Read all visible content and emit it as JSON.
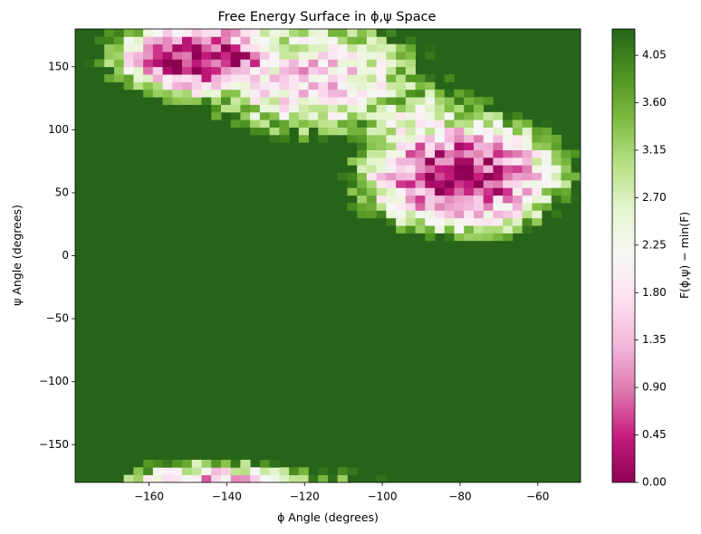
{
  "chart_data": {
    "type": "heatmap",
    "title": "Free Energy Surface in ϕ,ψ Space",
    "xlabel": "ϕ Angle (degrees)",
    "ylabel": "ψ Angle (degrees)",
    "colorbar_label": "F(ϕ,ψ) − min(F)",
    "xlim": [
      -179,
      -49
    ],
    "ylim": [
      -180,
      180
    ],
    "x_ticks": [
      -160,
      -140,
      -120,
      -100,
      -80,
      -60
    ],
    "x_tick_labels": [
      "−160",
      "−140",
      "−120",
      "−100",
      "−80",
      "−60"
    ],
    "y_ticks": [
      -150,
      -100,
      -50,
      0,
      50,
      100,
      150
    ],
    "y_tick_labels": [
      "−150",
      "−100",
      "−50",
      "0",
      "50",
      "100",
      "150"
    ],
    "colorbar_range": [
      0,
      4.3
    ],
    "colorbar_ticks": [
      0.0,
      0.45,
      0.9,
      1.35,
      1.8,
      2.25,
      2.7,
      3.15,
      3.6,
      4.05
    ],
    "colorbar_tick_labels": [
      "0.00",
      "0.45",
      "0.90",
      "1.35",
      "1.80",
      "2.25",
      "2.70",
      "3.15",
      "3.60",
      "4.05"
    ],
    "colormap": [
      "#8e0152",
      "#c51b7d",
      "#de77ae",
      "#f1b6da",
      "#fde0ef",
      "#f7f7f7",
      "#e6f5d0",
      "#b8e186",
      "#7fbc41",
      "#4d9221",
      "#276419"
    ],
    "background_value": 4.3,
    "basins": [
      {
        "phi": -146,
        "psi": 156,
        "min_value": 0.15,
        "phi_width": 10,
        "psi_width": 13
      },
      {
        "phi": -80,
        "psi": 64,
        "min_value": 0.2,
        "phi_width": 11,
        "psi_width": 20
      },
      {
        "phi": -118,
        "psi": 140,
        "min_value": 1.6,
        "phi_width": 14,
        "psi_width": 22
      },
      {
        "phi": -90,
        "psi": 100,
        "min_value": 2.3,
        "phi_width": 10,
        "psi_width": 22
      },
      {
        "phi": -143,
        "psi": -180,
        "min_value": 1.4,
        "phi_width": 12,
        "psi_width": 8
      }
    ]
  }
}
